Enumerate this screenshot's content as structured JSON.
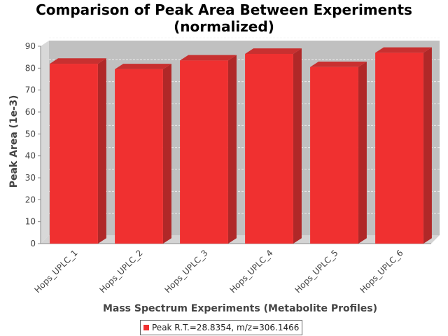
{
  "chart_data": {
    "type": "bar",
    "title": "Comparison of Peak Area Between Experiments\n(normalized)",
    "xlabel": "Mass Spectrum Experiments (Metabolite Profiles)",
    "ylabel": "Peak Area (1e-3)",
    "categories": [
      "Hops_UPLC_1",
      "Hops_UPLC_2",
      "Hops_UPLC_3",
      "Hops_UPLC_4",
      "Hops_UPLC_5",
      "Hops_UPLC_6"
    ],
    "series": [
      {
        "name": "Peak R.T.=28.8354, m/z=306.1466",
        "values": [
          82,
          79.5,
          83.5,
          86.5,
          80.5,
          87
        ],
        "color": "#f03030"
      }
    ],
    "ylim": [
      0,
      90
    ],
    "yticks": [
      0,
      10,
      20,
      30,
      40,
      50,
      60,
      70,
      80,
      90
    ],
    "grid": true,
    "legend_position": "bottom",
    "colors": {
      "plot_background": "#c0c0c0",
      "bar_front": "#f03030",
      "bar_side": "#b02828",
      "bar_top": "#c83030"
    }
  }
}
